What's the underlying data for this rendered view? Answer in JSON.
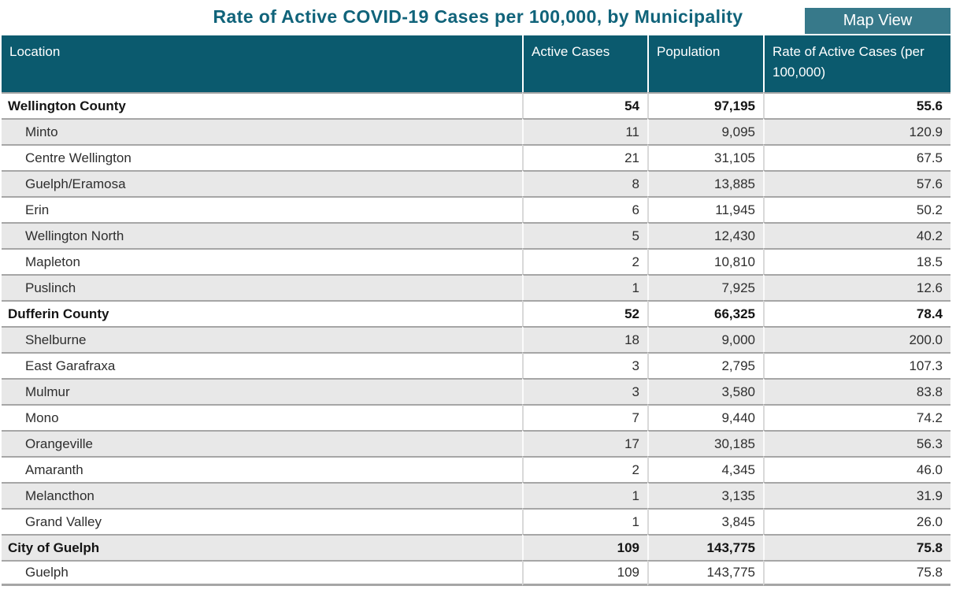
{
  "header": {
    "title": "Rate of Active COVID-19 Cases per 100,000, by Municipality",
    "title_color": "#10637a",
    "map_view_button": {
      "label": "Map View",
      "background": "#37798a",
      "text_color": "#ffffff"
    }
  },
  "chart_data": {
    "type": "table",
    "title": "Rate of Active COVID-19 Cases per 100,000, by Municipality",
    "columns": [
      "Location",
      "Active Cases",
      "Population",
      "Rate of Active Cases (per 100,000)"
    ],
    "header_background": "#0b5a6e",
    "header_text_color": "#ffffff",
    "row_alt_background": "#e8e8e8",
    "row_border_color": "#a6a6a6",
    "rows": [
      {
        "location": "Wellington County",
        "active_cases": "54",
        "population": "97,195",
        "rate": "55.6",
        "is_group": true
      },
      {
        "location": "Minto",
        "active_cases": "11",
        "population": "9,095",
        "rate": "120.9",
        "is_group": false
      },
      {
        "location": "Centre Wellington",
        "active_cases": "21",
        "population": "31,105",
        "rate": "67.5",
        "is_group": false
      },
      {
        "location": "Guelph/Eramosa",
        "active_cases": "8",
        "population": "13,885",
        "rate": "57.6",
        "is_group": false
      },
      {
        "location": "Erin",
        "active_cases": "6",
        "population": "11,945",
        "rate": "50.2",
        "is_group": false
      },
      {
        "location": "Wellington North",
        "active_cases": "5",
        "population": "12,430",
        "rate": "40.2",
        "is_group": false
      },
      {
        "location": "Mapleton",
        "active_cases": "2",
        "population": "10,810",
        "rate": "18.5",
        "is_group": false
      },
      {
        "location": "Puslinch",
        "active_cases": "1",
        "population": "7,925",
        "rate": "12.6",
        "is_group": false
      },
      {
        "location": "Dufferin County",
        "active_cases": "52",
        "population": "66,325",
        "rate": "78.4",
        "is_group": true
      },
      {
        "location": "Shelburne",
        "active_cases": "18",
        "population": "9,000",
        "rate": "200.0",
        "is_group": false
      },
      {
        "location": "East Garafraxa",
        "active_cases": "3",
        "population": "2,795",
        "rate": "107.3",
        "is_group": false
      },
      {
        "location": "Mulmur",
        "active_cases": "3",
        "population": "3,580",
        "rate": "83.8",
        "is_group": false
      },
      {
        "location": "Mono",
        "active_cases": "7",
        "population": "9,440",
        "rate": "74.2",
        "is_group": false
      },
      {
        "location": "Orangeville",
        "active_cases": "17",
        "population": "30,185",
        "rate": "56.3",
        "is_group": false
      },
      {
        "location": "Amaranth",
        "active_cases": "2",
        "population": "4,345",
        "rate": "46.0",
        "is_group": false
      },
      {
        "location": "Melancthon",
        "active_cases": "1",
        "population": "3,135",
        "rate": "31.9",
        "is_group": false
      },
      {
        "location": "Grand Valley",
        "active_cases": "1",
        "population": "3,845",
        "rate": "26.0",
        "is_group": false
      },
      {
        "location": "City of Guelph",
        "active_cases": "109",
        "population": "143,775",
        "rate": "75.8",
        "is_group": true
      },
      {
        "location": "Guelph",
        "active_cases": "109",
        "population": "143,775",
        "rate": "75.8",
        "is_group": false
      }
    ]
  }
}
